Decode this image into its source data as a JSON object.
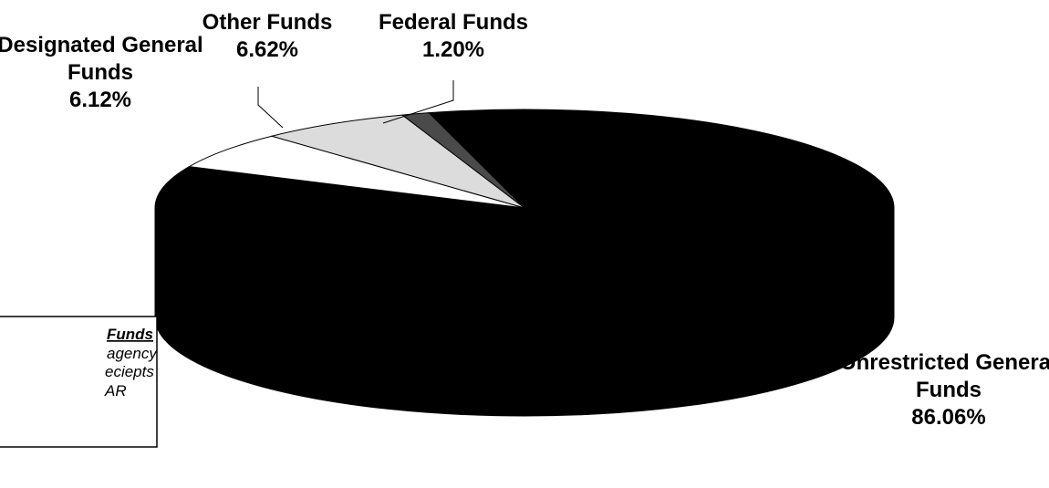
{
  "chart_data": {
    "type": "pie3d",
    "categories": [
      "Unrestricted General Funds",
      "Designated General Funds",
      "Other Funds",
      "Federal Funds"
    ],
    "values": [
      86.06,
      6.12,
      6.62,
      1.2
    ],
    "value_labels": [
      "86.06%",
      "6.12%",
      "6.62%",
      "1.20%"
    ],
    "colors": [
      "#000000",
      "#ffffff",
      "#dcdcdc",
      "#4a4a4a"
    ],
    "note": {
      "title": "Funds",
      "lines": [
        "agency",
        "eciepts",
        "AR"
      ]
    }
  }
}
